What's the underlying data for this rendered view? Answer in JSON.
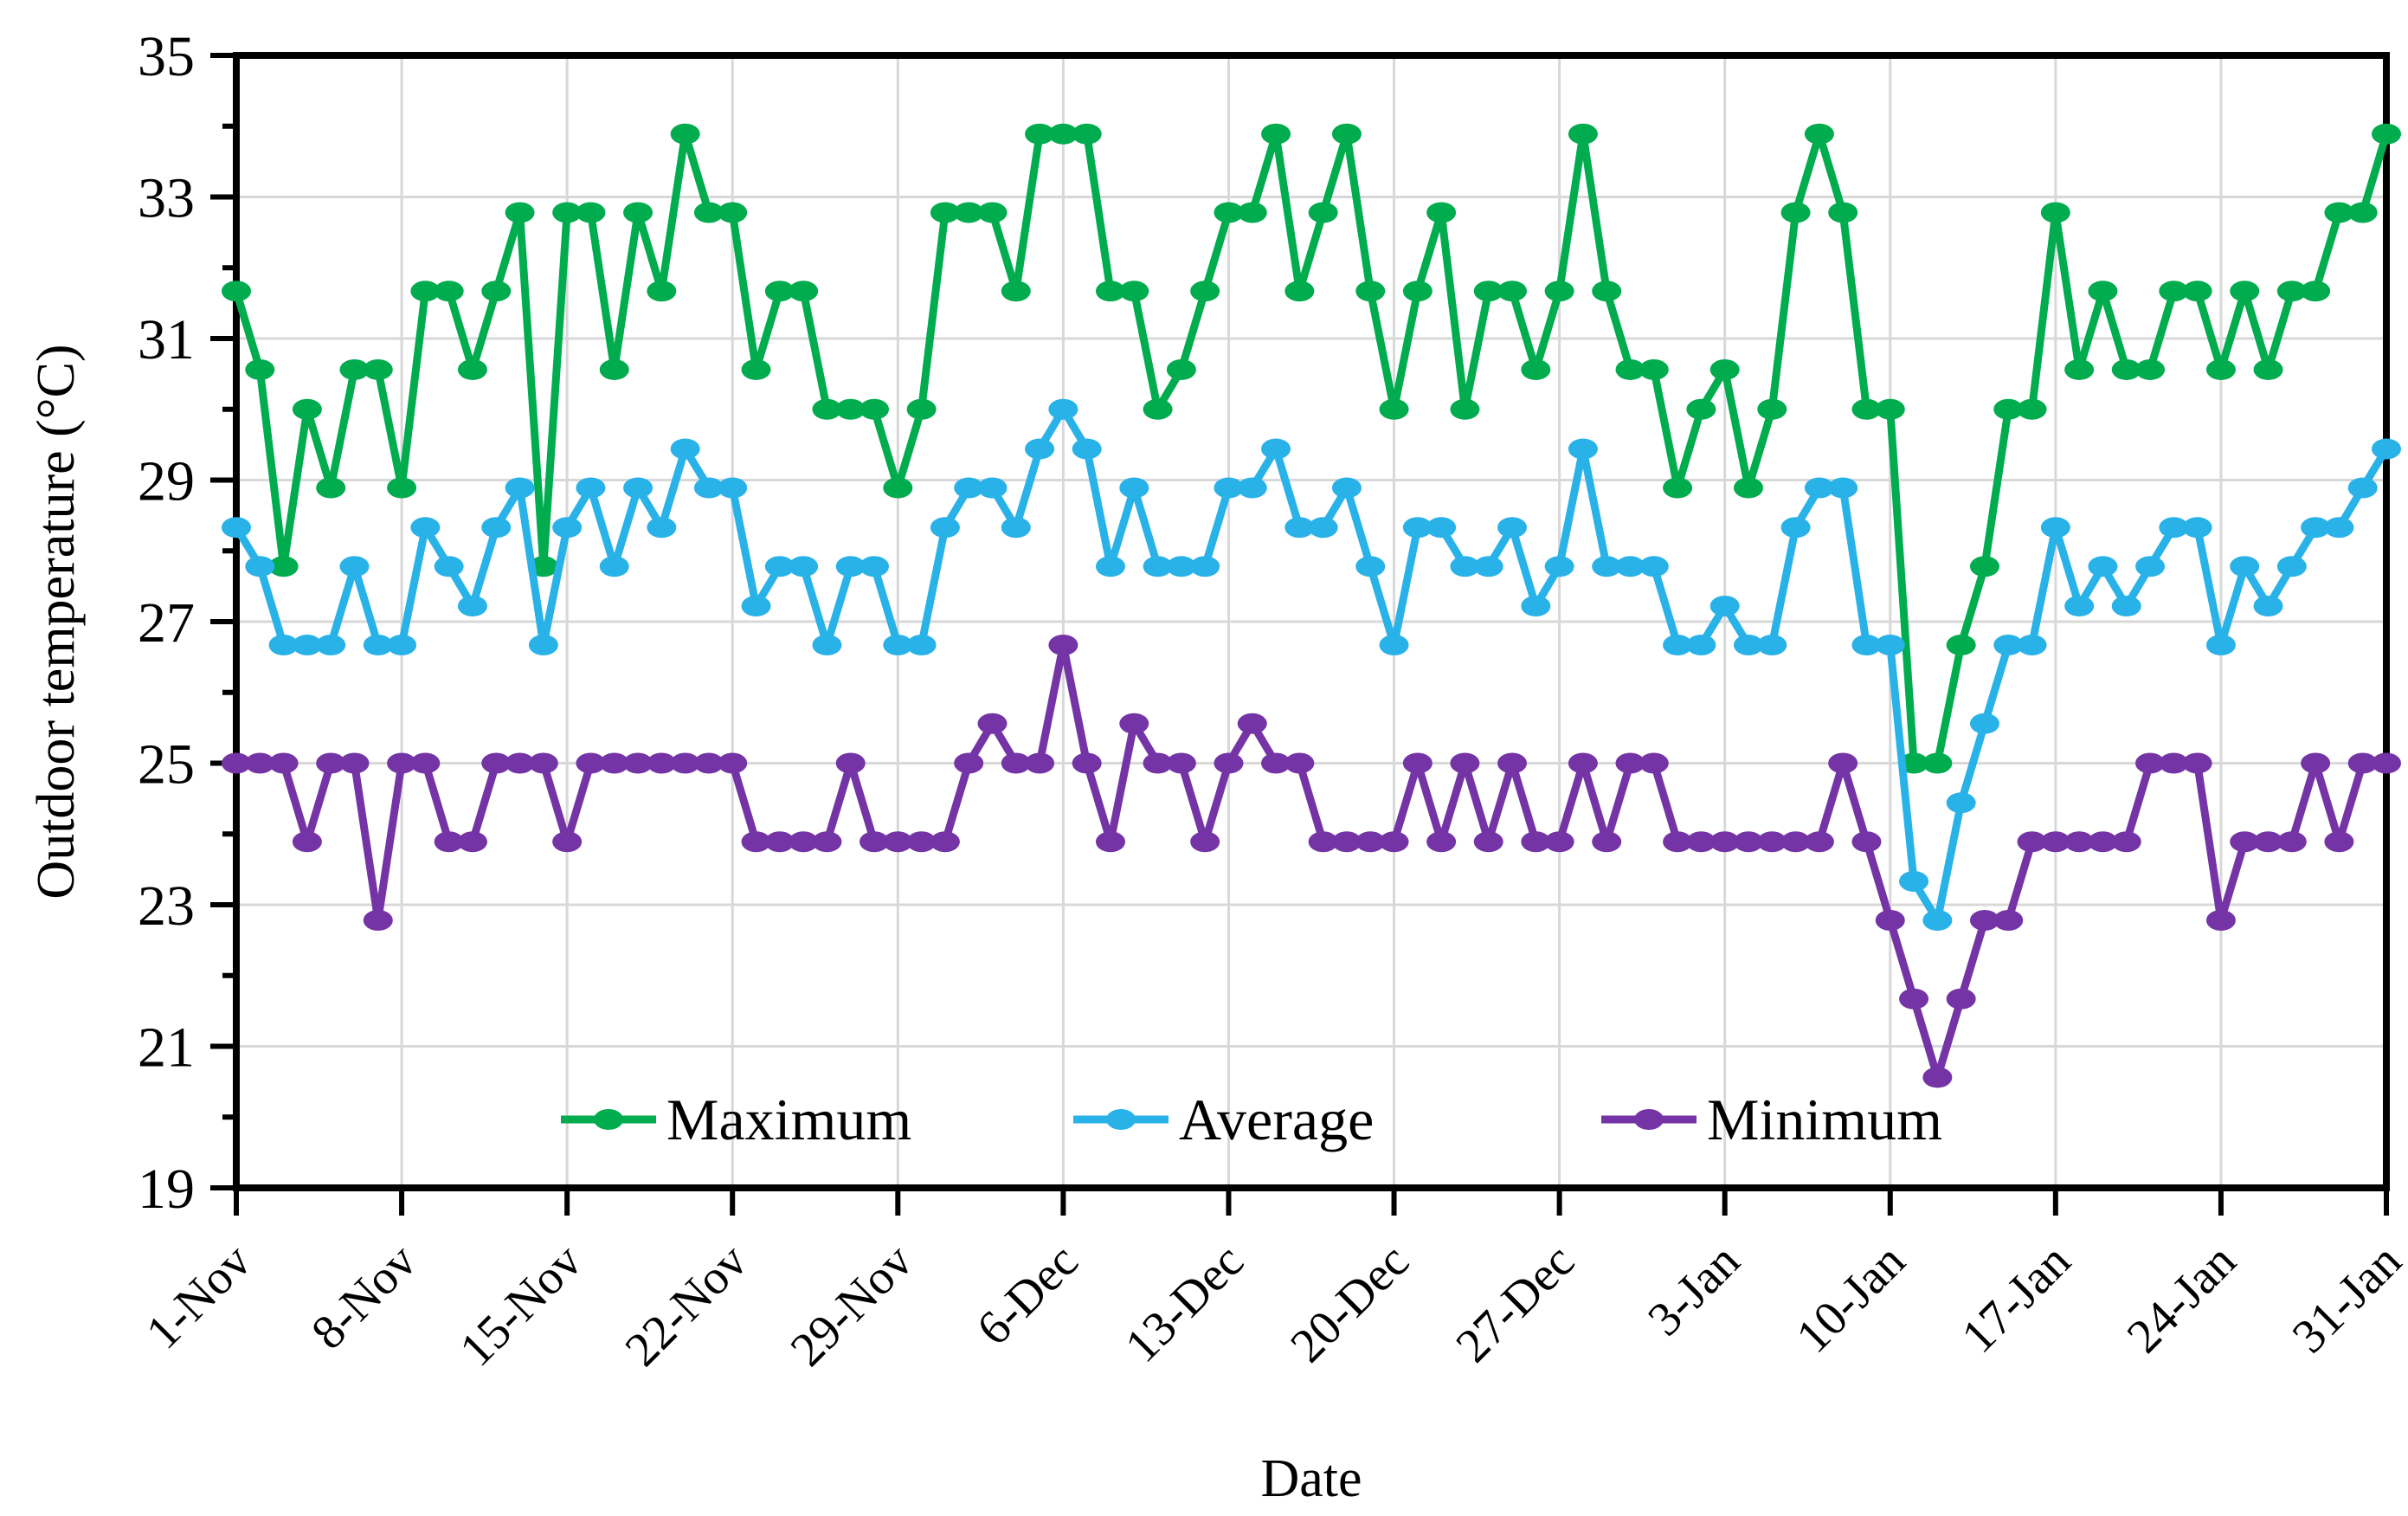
{
  "figure": {
    "background": "#FFFFFF",
    "y_axis": {
      "title": "Outdoor temperature (°C)",
      "min": 19,
      "max": 35,
      "major_step": 2,
      "tick_labels": [
        "19",
        "21",
        "23",
        "25",
        "27",
        "29",
        "31",
        "33",
        "35"
      ]
    },
    "x_axis": {
      "title": "Date",
      "tick_labels": [
        "1-Nov",
        "8-Nov",
        "15-Nov",
        "22-Nov",
        "29-Nov",
        "6-Dec",
        "13-Dec",
        "20-Dec",
        "27-Dec",
        "3-Jan",
        "10-Jan",
        "17-Jan",
        "24-Jan",
        "31-Jan"
      ],
      "tick_interval_days": 7
    },
    "legend": [
      {
        "label": "Maximum",
        "color": "#00AC4E"
      },
      {
        "label": "Average",
        "color": "#29B2E8"
      },
      {
        "label": "Minimum",
        "color": "#7434A6"
      }
    ],
    "colors": {
      "gridline": "#D8D8D8",
      "axis": "#000000"
    }
  },
  "chart_data": {
    "type": "line",
    "title": "",
    "xlabel": "Date",
    "ylabel": "Outdoor temperature (°C)",
    "ylim": [
      19,
      35
    ],
    "grid": true,
    "legend_position": "bottom-inside",
    "x_start": "1-Nov",
    "x_end": "31-Jan",
    "n_points": 92,
    "x_tick_labels": [
      "1-Nov",
      "8-Nov",
      "15-Nov",
      "22-Nov",
      "29-Nov",
      "6-Dec",
      "13-Dec",
      "20-Dec",
      "27-Dec",
      "3-Jan",
      "10-Jan",
      "17-Jan",
      "24-Jan",
      "31-Jan"
    ],
    "series": [
      {
        "name": "Maximum",
        "color": "#00AC4E",
        "values": [
          31.67,
          30.56,
          27.78,
          30,
          28.89,
          30.56,
          30.56,
          28.89,
          31.67,
          31.67,
          30.56,
          31.67,
          32.78,
          27.78,
          32.78,
          32.78,
          30.56,
          32.78,
          31.67,
          33.89,
          32.78,
          32.78,
          30.56,
          31.67,
          31.67,
          30,
          30,
          30,
          28.89,
          30,
          32.78,
          32.78,
          32.78,
          31.67,
          33.89,
          33.89,
          33.89,
          31.67,
          31.67,
          30,
          30.56,
          31.67,
          32.78,
          32.78,
          33.89,
          31.67,
          32.78,
          33.89,
          31.67,
          30,
          31.67,
          32.78,
          30,
          31.67,
          31.67,
          30.56,
          31.67,
          33.89,
          31.67,
          30.56,
          30.56,
          28.89,
          30,
          30.56,
          28.89,
          30,
          32.78,
          33.89,
          32.78,
          30,
          30,
          25,
          25,
          26.67,
          27.78,
          30,
          30,
          32.78,
          30.56,
          31.67,
          30.56,
          30.56,
          31.67,
          31.67,
          30.56,
          31.67,
          30.56,
          31.67,
          31.67,
          32.78,
          32.78,
          33.89
        ]
      },
      {
        "name": "Average",
        "color": "#29B2E8",
        "values": [
          28.33,
          27.78,
          26.67,
          26.67,
          26.67,
          27.78,
          26.67,
          26.67,
          28.33,
          27.78,
          27.22,
          28.33,
          28.89,
          26.67,
          28.33,
          28.89,
          27.78,
          28.89,
          28.33,
          29.44,
          28.89,
          28.89,
          27.22,
          27.78,
          27.78,
          26.67,
          27.78,
          27.78,
          26.67,
          26.67,
          28.33,
          28.89,
          28.89,
          28.33,
          29.44,
          30,
          29.44,
          27.78,
          28.89,
          27.78,
          27.78,
          27.78,
          28.89,
          28.89,
          29.44,
          28.33,
          28.33,
          28.89,
          27.78,
          26.67,
          28.33,
          28.33,
          27.78,
          27.78,
          28.33,
          27.22,
          27.78,
          29.44,
          27.78,
          27.78,
          27.78,
          26.67,
          26.67,
          27.22,
          26.67,
          26.67,
          28.33,
          28.89,
          28.89,
          26.67,
          26.67,
          23.33,
          22.78,
          24.44,
          25.56,
          26.67,
          26.67,
          28.33,
          27.22,
          27.78,
          27.22,
          27.78,
          28.33,
          28.33,
          26.67,
          27.78,
          27.22,
          27.78,
          28.33,
          28.33,
          28.89,
          29.44
        ]
      },
      {
        "name": "Minimum",
        "color": "#7434A6",
        "values": [
          25,
          25,
          25,
          23.89,
          25,
          25,
          22.78,
          25,
          25,
          23.89,
          23.89,
          25,
          25,
          25,
          23.89,
          25,
          25,
          25,
          25,
          25,
          25,
          25,
          23.89,
          23.89,
          23.89,
          23.89,
          25,
          23.89,
          23.89,
          23.89,
          23.89,
          25,
          25.56,
          25,
          25,
          26.67,
          25,
          23.89,
          25.56,
          25,
          25,
          23.89,
          25,
          25.56,
          25,
          25,
          23.89,
          23.89,
          23.89,
          23.89,
          25,
          23.89,
          25,
          23.89,
          25,
          23.89,
          23.89,
          25,
          23.89,
          25,
          25,
          23.89,
          23.89,
          23.89,
          23.89,
          23.89,
          23.89,
          23.89,
          25,
          23.89,
          22.78,
          21.67,
          20.56,
          21.67,
          22.78,
          22.78,
          23.89,
          23.89,
          23.89,
          23.89,
          23.89,
          25,
          25,
          25,
          22.78,
          23.89,
          23.89,
          23.89,
          25,
          23.89,
          25,
          25
        ]
      }
    ]
  }
}
